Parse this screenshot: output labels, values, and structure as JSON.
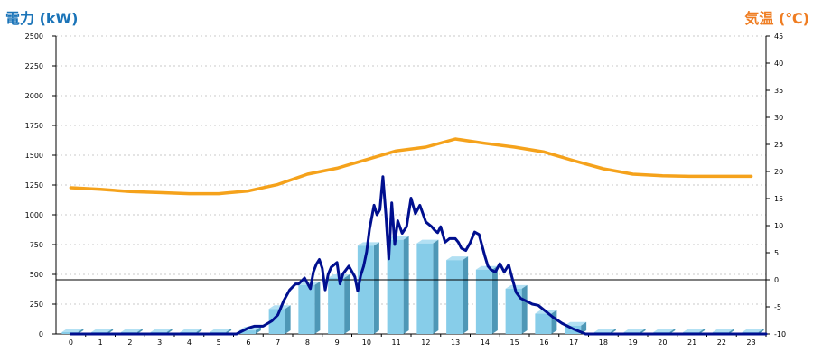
{
  "left_axis_title": "電力 (kW)",
  "right_axis_title": "気温 (℃)",
  "colors": {
    "left_title": "#1b74b8",
    "right_title": "#ef7d22",
    "bar_front": "#87cde9",
    "bar_side": "#4e97b6",
    "bar_top": "#b2e0f3",
    "power_line": "#000f8f",
    "temperature_line": "#f5a21b",
    "grid": "#c8c8c8",
    "zero_line": "#000000"
  },
  "chart_data": {
    "type": "bar",
    "grid": true,
    "legend": "none",
    "categories": [
      "0",
      "1",
      "2",
      "3",
      "4",
      "5",
      "6",
      "7",
      "8",
      "9",
      "10",
      "11",
      "12",
      "13",
      "14",
      "15",
      "16",
      "17",
      "18",
      "19",
      "20",
      "21",
      "22",
      "23"
    ],
    "y_left": {
      "label": "電力 (kW)",
      "range": [
        0,
        2500
      ],
      "ticks": [
        "0",
        "250",
        "500",
        "750",
        "1000",
        "1250",
        "1500",
        "1750",
        "2000",
        "2250",
        "2500"
      ]
    },
    "y_right": {
      "label": "気温 (℃)",
      "range": [
        -10,
        45
      ],
      "ticks": [
        "-10",
        "-5",
        "0",
        "5",
        "10",
        "15",
        "20",
        "25",
        "30",
        "35",
        "40",
        "45"
      ]
    },
    "series": [
      {
        "kind": "bar",
        "axis": "left",
        "values": [
          0,
          0,
          0,
          0,
          0,
          0,
          30,
          210,
          410,
          470,
          740,
          790,
          760,
          620,
          540,
          380,
          170,
          70,
          0,
          0,
          0,
          0,
          0,
          0
        ]
      },
      {
        "kind": "line",
        "axis": "right",
        "x": [
          0,
          1,
          2,
          3,
          4,
          5,
          6,
          7,
          8,
          9,
          10,
          11,
          12,
          13,
          14,
          15,
          16,
          17,
          18,
          19,
          20,
          21,
          22,
          23
        ],
        "values": [
          17,
          16.7,
          16.3,
          16.1,
          15.9,
          15.9,
          16.4,
          17.6,
          19.5,
          20.6,
          22.2,
          23.8,
          24.5,
          26.0,
          25.2,
          24.5,
          23.6,
          22.0,
          20.5,
          19.5,
          19.2,
          19.1,
          19.1,
          19.1
        ]
      },
      {
        "kind": "line",
        "axis": "left",
        "x": [
          0,
          5.6,
          6.0,
          6.2,
          6.5,
          6.8,
          7.0,
          7.2,
          7.4,
          7.6,
          7.7,
          7.9,
          8.1,
          8.2,
          8.3,
          8.4,
          8.5,
          8.6,
          8.7,
          8.8,
          9.0,
          9.1,
          9.2,
          9.4,
          9.6,
          9.7,
          9.8,
          9.9,
          10.0,
          10.1,
          10.25,
          10.35,
          10.45,
          10.55,
          10.65,
          10.75,
          10.85,
          10.95,
          11.05,
          11.2,
          11.35,
          11.5,
          11.65,
          11.8,
          12.0,
          12.2,
          12.3,
          12.4,
          12.5,
          12.65,
          12.8,
          13.0,
          13.1,
          13.2,
          13.35,
          13.5,
          13.65,
          13.8,
          14.0,
          14.1,
          14.2,
          14.35,
          14.5,
          14.65,
          14.8,
          14.95,
          15.05,
          15.2,
          15.4,
          15.6,
          15.8,
          16.0,
          16.3,
          16.6,
          17.0,
          17.4,
          23.5
        ],
        "values": [
          0,
          0,
          50,
          65,
          65,
          110,
          160,
          280,
          370,
          420,
          420,
          470,
          380,
          520,
          585,
          625,
          550,
          370,
          500,
          560,
          600,
          420,
          505,
          570,
          480,
          360,
          490,
          570,
          690,
          880,
          1080,
          1000,
          1045,
          1320,
          1000,
          630,
          1100,
          750,
          950,
          845,
          900,
          1140,
          1010,
          1080,
          940,
          900,
          870,
          850,
          900,
          770,
          800,
          800,
          770,
          720,
          700,
          765,
          855,
          835,
          650,
          570,
          540,
          520,
          590,
          520,
          580,
          440,
          350,
          300,
          275,
          250,
          240,
          200,
          140,
          90,
          40,
          0,
          0
        ]
      }
    ]
  }
}
